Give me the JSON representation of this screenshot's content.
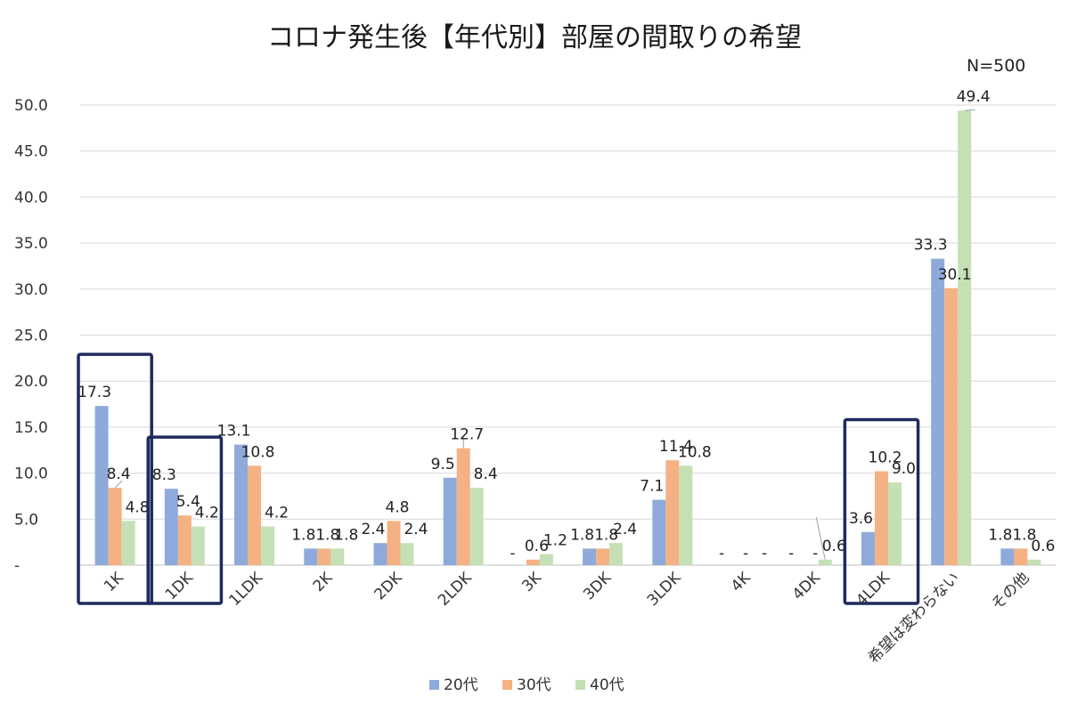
{
  "chart_data": {
    "type": "bar",
    "title": "コロナ発生後【年代別】部屋の間取りの希望",
    "note": "N=500",
    "categories": [
      "1K",
      "1DK",
      "1LDK",
      "2K",
      "2DK",
      "2LDK",
      "3K",
      "3DK",
      "3LDK",
      "4K",
      "4DK",
      "4LDK",
      "希望は変わらない",
      "その他"
    ],
    "series": [
      {
        "name": "20代",
        "color": "#8eaadb",
        "values": [
          17.3,
          8.3,
          13.1,
          1.8,
          2.4,
          9.5,
          0,
          1.8,
          7.1,
          0,
          0,
          3.6,
          33.3,
          1.8
        ],
        "labels": [
          "17.3",
          "8.3",
          "13.1",
          "1.8",
          "2.4",
          "9.5",
          "-",
          "1.8",
          "7.1",
          "-",
          "-",
          "3.6",
          "33.3",
          "1.8"
        ]
      },
      {
        "name": "30代",
        "color": "#f4b183",
        "values": [
          8.4,
          5.4,
          10.8,
          1.8,
          4.8,
          12.7,
          0.6,
          1.8,
          11.4,
          0,
          0,
          10.2,
          30.1,
          1.8
        ],
        "labels": [
          "8.4",
          "5.4",
          "10.8",
          "1.8",
          "4.8",
          "12.7",
          "0.6",
          "1.8",
          "11.4",
          "-",
          "-",
          "10.2",
          "30.1",
          "1.8"
        ]
      },
      {
        "name": "40代",
        "color": "#c5e0b4",
        "values": [
          4.8,
          4.2,
          4.2,
          1.8,
          2.4,
          8.4,
          1.2,
          2.4,
          10.8,
          0,
          0.6,
          9.0,
          49.4,
          0.6
        ],
        "labels": [
          "4.8",
          "4.2",
          "4.2",
          "1.8",
          "2.4",
          "8.4",
          "1.2",
          "2.4",
          "10.8",
          "-",
          "0.6",
          "9.0",
          "49.4",
          "0.6"
        ]
      }
    ],
    "ytick_labels": [
      "-",
      "5.0",
      "10.0",
      "15.0",
      "20.0",
      "25.0",
      "30.0",
      "35.0",
      "40.0",
      "45.0",
      "50.0"
    ],
    "ylim": [
      0,
      50
    ],
    "grid": true,
    "legend_position": "bottom",
    "highlighted_categories": [
      "1K",
      "1DK",
      "4LDK"
    ],
    "highlight_color": "#1f2a5c"
  }
}
